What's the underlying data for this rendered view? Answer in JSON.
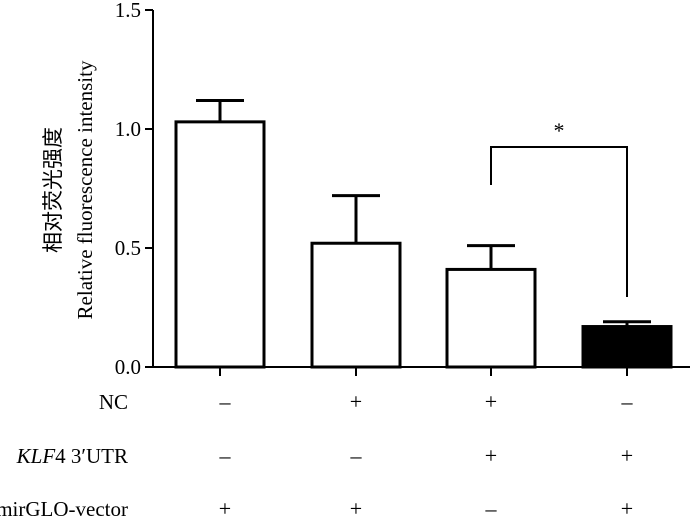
{
  "chart_data": {
    "type": "bar",
    "ylabel_cn": "相对荧光强度",
    "ylabel_en": "Relative fluorescence intensity",
    "ylim": [
      0,
      1.5
    ],
    "yticks": [
      0,
      0.5,
      1.0,
      1.5
    ],
    "ytick_labels": [
      "0.0",
      "0.5",
      "1.0",
      "1.5"
    ],
    "values": [
      1.03,
      0.52,
      0.41,
      0.17
    ],
    "errors": [
      0.09,
      0.2,
      0.1,
      0.02
    ],
    "fills": [
      "#ffffff",
      "#ffffff",
      "#ffffff",
      "#000000"
    ],
    "significance": {
      "from": 2,
      "to": 3,
      "label": "*"
    },
    "conditions": [
      {
        "label": "NC",
        "italic": "",
        "suffix": "",
        "marks": [
          "–",
          "+",
          "+",
          "–"
        ]
      },
      {
        "label": "",
        "italic": "KLF",
        "suffix": "4 3′UTR",
        "marks": [
          "–",
          "–",
          "+",
          "+"
        ]
      },
      {
        "label": "pmirGLO-vector",
        "italic": "",
        "suffix": "",
        "marks": [
          "+",
          "+",
          "–",
          "+"
        ]
      }
    ]
  }
}
